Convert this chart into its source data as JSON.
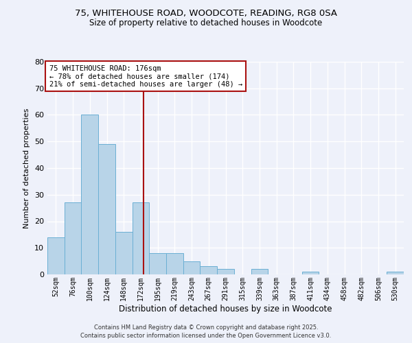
{
  "title1": "75, WHITEHOUSE ROAD, WOODCOTE, READING, RG8 0SA",
  "title2": "Size of property relative to detached houses in Woodcote",
  "xlabel": "Distribution of detached houses by size in Woodcote",
  "ylabel": "Number of detached properties",
  "bin_labels": [
    "52sqm",
    "76sqm",
    "100sqm",
    "124sqm",
    "148sqm",
    "172sqm",
    "195sqm",
    "219sqm",
    "243sqm",
    "267sqm",
    "291sqm",
    "315sqm",
    "339sqm",
    "363sqm",
    "387sqm",
    "411sqm",
    "434sqm",
    "458sqm",
    "482sqm",
    "506sqm",
    "530sqm"
  ],
  "bin_values": [
    14,
    27,
    60,
    49,
    16,
    27,
    8,
    8,
    5,
    3,
    2,
    0,
    2,
    0,
    0,
    1,
    0,
    0,
    0,
    0,
    1
  ],
  "bar_color": "#b8d4e8",
  "bar_edge_color": "#6aafd4",
  "ylim": [
    0,
    80
  ],
  "yticks": [
    0,
    10,
    20,
    30,
    40,
    50,
    60,
    70,
    80
  ],
  "property_label": "75 WHITEHOUSE ROAD: 176sqm",
  "annotation_line1": "← 78% of detached houses are smaller (174)",
  "annotation_line2": "21% of semi-detached houses are larger (48) →",
  "vline_color": "#aa1111",
  "annotation_box_color": "#ffffff",
  "annotation_box_edge": "#aa1111",
  "footer1": "Contains HM Land Registry data © Crown copyright and database right 2025.",
  "footer2": "Contains public sector information licensed under the Open Government Licence v3.0.",
  "bg_color": "#eef1fa",
  "grid_color": "#ffffff"
}
